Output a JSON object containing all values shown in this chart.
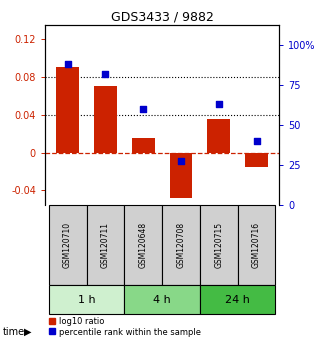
{
  "title": "GDS3433 / 9882",
  "categories": [
    "GSM120710",
    "GSM120711",
    "GSM120648",
    "GSM120708",
    "GSM120715",
    "GSM120716"
  ],
  "log10_ratio": [
    0.09,
    0.07,
    0.015,
    -0.048,
    0.035,
    -0.015
  ],
  "percentile_rank": [
    88,
    82,
    60,
    27,
    63,
    40
  ],
  "time_groups": [
    {
      "label": "1 h",
      "indices": [
        0,
        1
      ],
      "color": "#cff0cf"
    },
    {
      "label": "4 h",
      "indices": [
        2,
        3
      ],
      "color": "#88d888"
    },
    {
      "label": "24 h",
      "indices": [
        4,
        5
      ],
      "color": "#44bb44"
    }
  ],
  "bar_color": "#cc2200",
  "dot_color": "#0000cc",
  "left_ylim": [
    -0.055,
    0.135
  ],
  "right_ylim": [
    0,
    112.5
  ],
  "left_yticks": [
    -0.04,
    0,
    0.04,
    0.08,
    0.12
  ],
  "right_yticks": [
    0,
    25,
    50,
    75,
    100
  ],
  "left_yticklabels": [
    "-0.04",
    "0",
    "0.04",
    "0.08",
    "0.12"
  ],
  "right_yticklabels": [
    "0",
    "25",
    "50",
    "75",
    "100%"
  ],
  "hlines": [
    0.04,
    0.08
  ],
  "hline_zero_color": "#cc2200",
  "hline_color": "black",
  "sample_box_color": "#d0d0d0",
  "time_label": "time",
  "legend_bar_label": "log10 ratio",
  "legend_dot_label": "percentile rank within the sample",
  "bar_width": 0.6
}
